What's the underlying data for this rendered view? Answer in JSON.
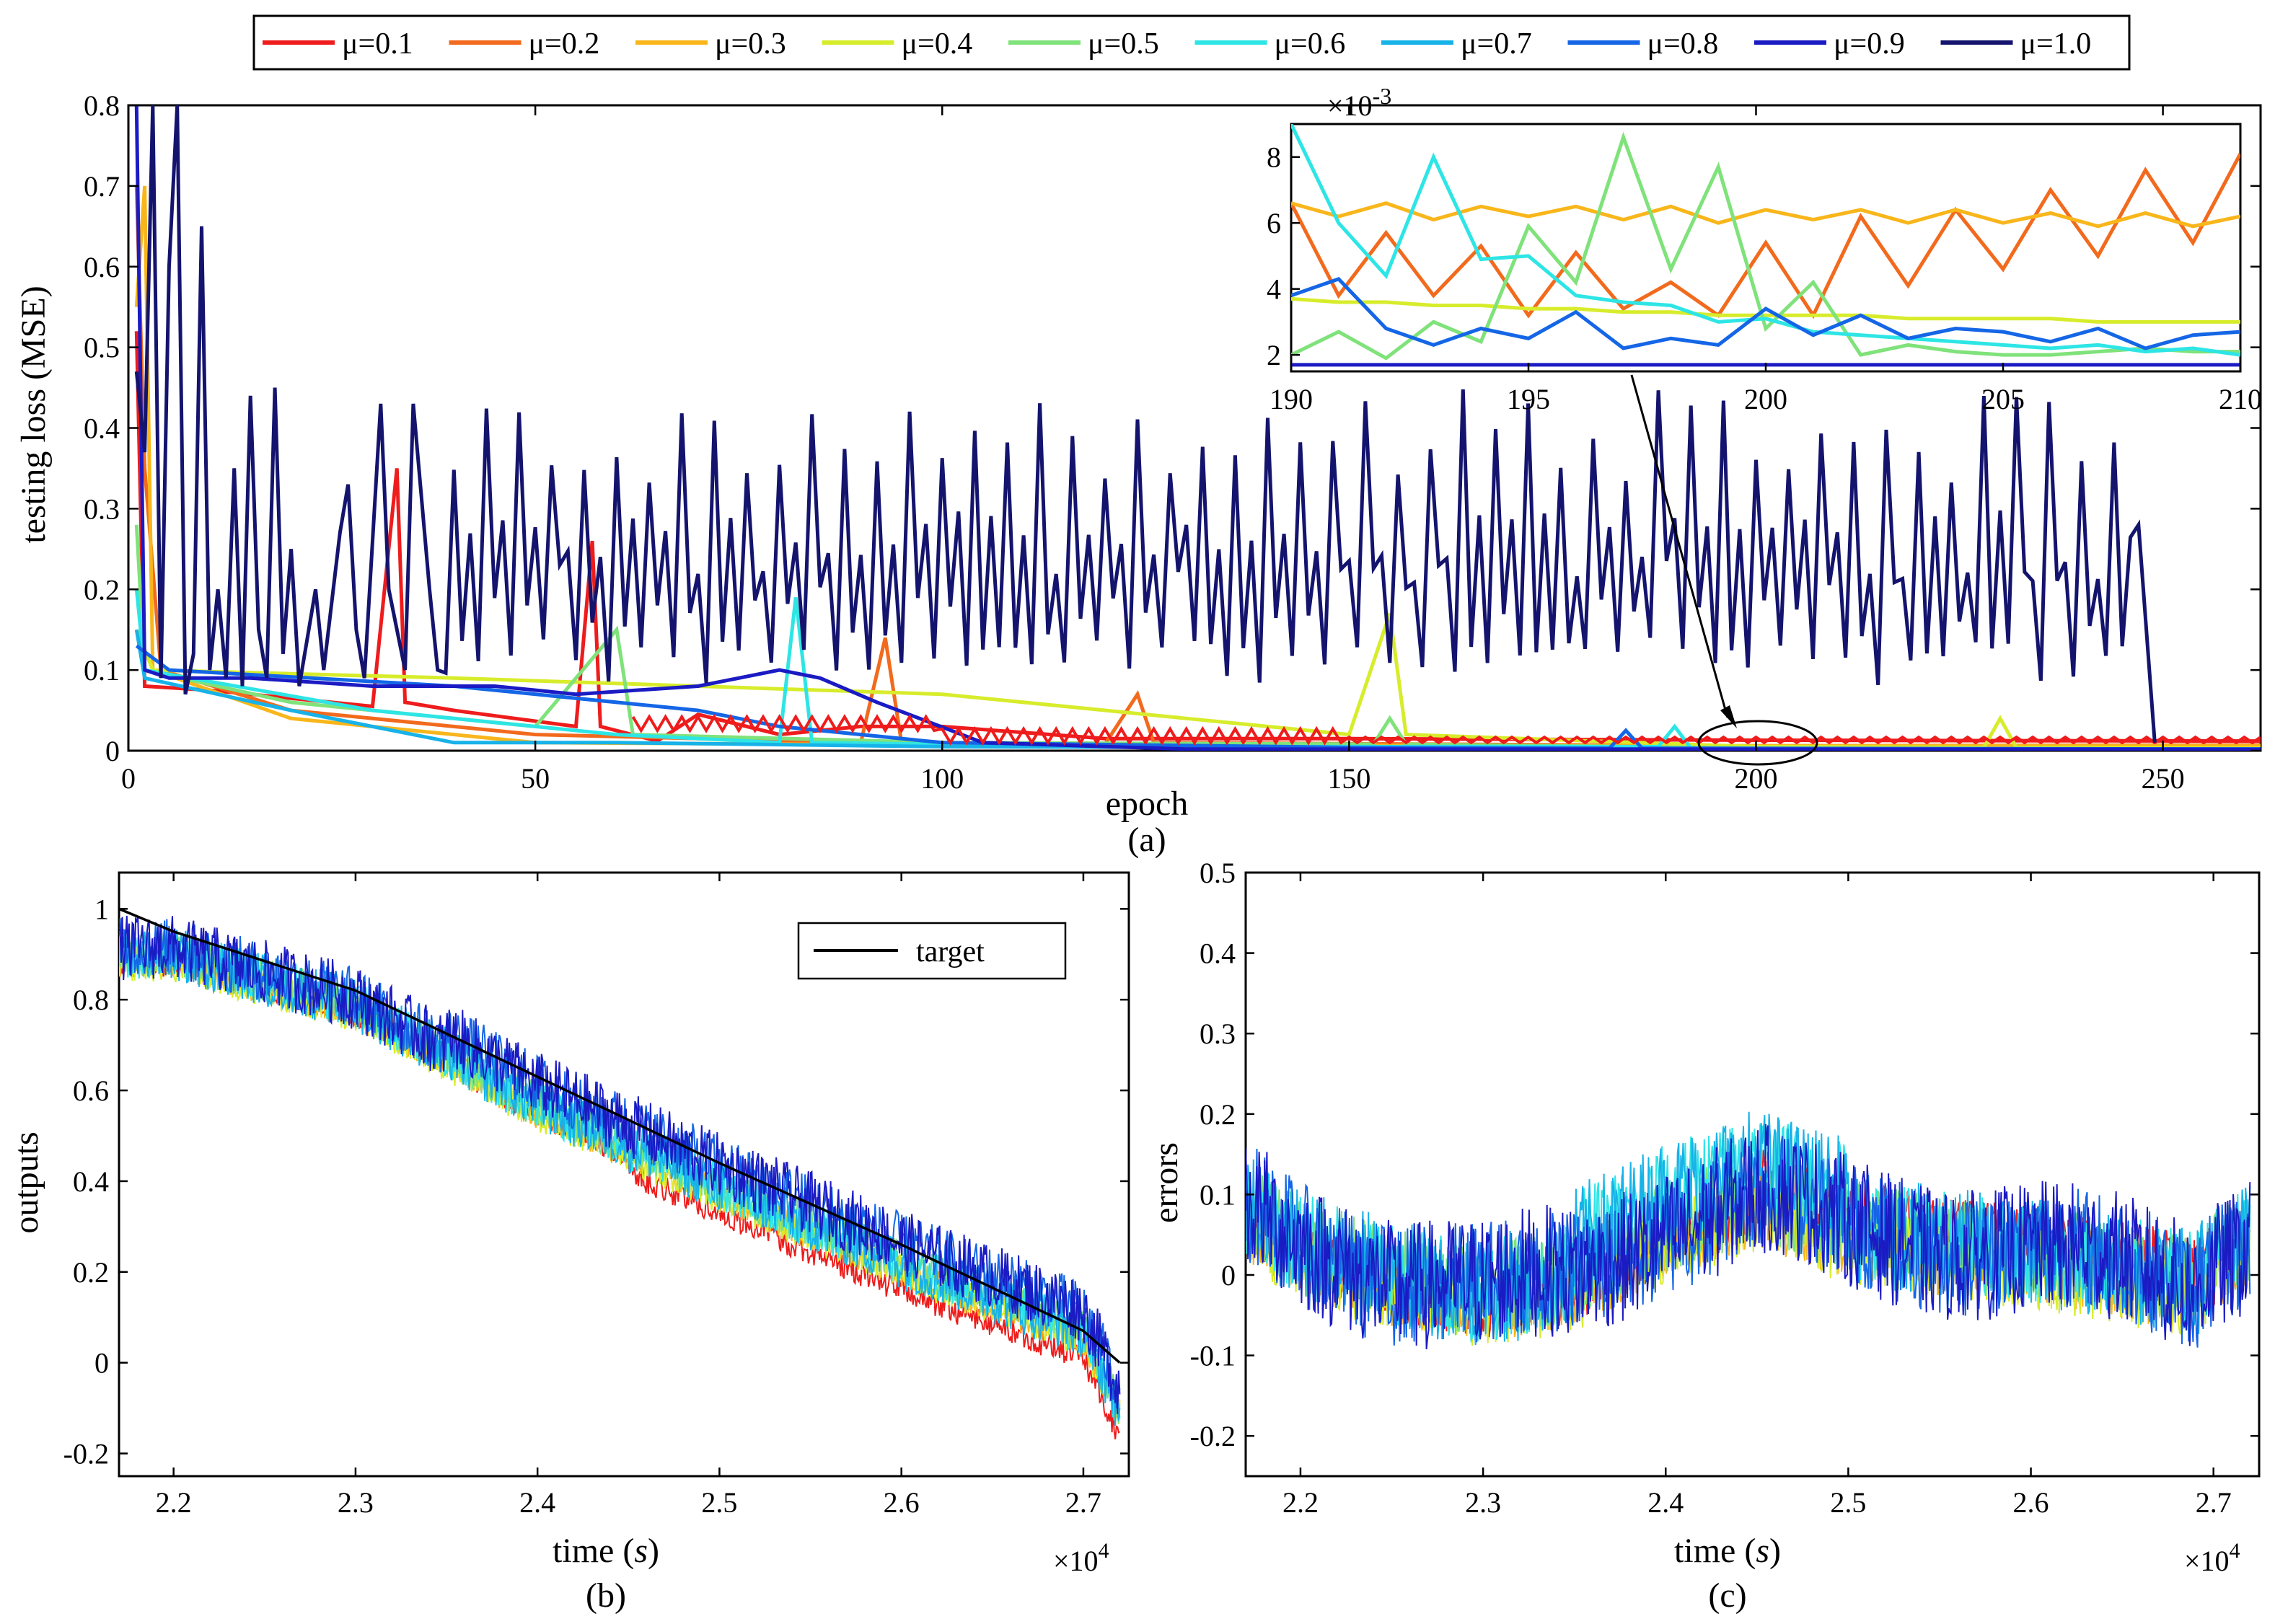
{
  "legend": {
    "items": [
      {
        "label": "μ=0.1",
        "color": "#ee1c1c"
      },
      {
        "label": "μ=0.2",
        "color": "#f26a1d"
      },
      {
        "label": "μ=0.3",
        "color": "#f8b61b"
      },
      {
        "label": "μ=0.4",
        "color": "#d7ec2b"
      },
      {
        "label": "μ=0.5",
        "color": "#7fe27a"
      },
      {
        "label": "μ=0.6",
        "color": "#2ee5e5"
      },
      {
        "label": "μ=0.7",
        "color": "#17b2e8"
      },
      {
        "label": "μ=0.8",
        "color": "#1466e6"
      },
      {
        "label": "μ=0.9",
        "color": "#1b1bc4"
      },
      {
        "label": "μ=1.0",
        "color": "#14146e"
      }
    ]
  },
  "chart_data": [
    {
      "id": "a",
      "type": "line",
      "panel_label": "(a)",
      "xlabel": "epoch",
      "ylabel": "testing loss (MSE)",
      "xlim": [
        0,
        262
      ],
      "ylim": [
        0,
        0.8
      ],
      "xticks": [
        0,
        50,
        100,
        150,
        200,
        250
      ],
      "yticks": [
        0,
        0.1,
        0.2,
        0.3,
        0.4,
        0.5,
        0.6,
        0.7,
        0.8
      ],
      "ytick_labels": [
        "0",
        "0.1",
        "0.2",
        "0.3",
        "0.4",
        "0.5",
        "0.6",
        "0.7",
        "0.8"
      ],
      "series": [
        {
          "name": "μ=0.1",
          "points": [
            [
              1,
              0.52
            ],
            [
              2,
              0.08
            ],
            [
              10,
              0.075
            ],
            [
              30,
              0.055
            ],
            [
              33,
              0.35
            ],
            [
              34,
              0.06
            ],
            [
              40,
              0.05
            ],
            [
              55,
              0.03
            ],
            [
              57,
              0.26
            ],
            [
              58,
              0.03
            ],
            [
              65,
              0.012
            ],
            [
              70,
              0.045
            ],
            [
              80,
              0.02
            ],
            [
              90,
              0.03
            ],
            [
              100,
              0.03
            ],
            [
              120,
              0.015
            ],
            [
              150,
              0.015
            ],
            [
              200,
              0.013
            ],
            [
              262,
              0.012
            ]
          ]
        },
        {
          "name": "μ=0.2",
          "points": [
            [
              1,
              0.7
            ],
            [
              2,
              0.35
            ],
            [
              4,
              0.1
            ],
            [
              20,
              0.05
            ],
            [
              50,
              0.02
            ],
            [
              90,
              0.01
            ],
            [
              93,
              0.14
            ],
            [
              95,
              0.01
            ],
            [
              120,
              0.008
            ],
            [
              124,
              0.07
            ],
            [
              126,
              0.01
            ],
            [
              200,
              0.006
            ],
            [
              262,
              0.007
            ]
          ]
        },
        {
          "name": "μ=0.3",
          "points": [
            [
              1,
              0.55
            ],
            [
              2,
              0.7
            ],
            [
              3,
              0.1
            ],
            [
              20,
              0.04
            ],
            [
              50,
              0.01
            ],
            [
              100,
              0.007
            ],
            [
              200,
              0.006
            ],
            [
              262,
              0.006
            ]
          ]
        },
        {
          "name": "μ=0.4",
          "points": [
            [
              1,
              0.15
            ],
            [
              3,
              0.1
            ],
            [
              40,
              0.09
            ],
            [
              100,
              0.07
            ],
            [
              150,
              0.02
            ],
            [
              155,
              0.17
            ],
            [
              157,
              0.02
            ],
            [
              200,
              0.005
            ],
            [
              228,
              0.004
            ],
            [
              230,
              0.04
            ],
            [
              232,
              0.004
            ],
            [
              262,
              0.003
            ]
          ]
        },
        {
          "name": "μ=0.5",
          "points": [
            [
              1,
              0.28
            ],
            [
              2,
              0.1
            ],
            [
              20,
              0.06
            ],
            [
              50,
              0.03
            ],
            [
              60,
              0.15
            ],
            [
              62,
              0.02
            ],
            [
              100,
              0.01
            ],
            [
              153,
              0.008
            ],
            [
              155,
              0.04
            ],
            [
              157,
              0.008
            ],
            [
              200,
              0.003
            ],
            [
              262,
              0.002
            ]
          ]
        },
        {
          "name": "μ=0.6",
          "points": [
            [
              1,
              0.2
            ],
            [
              2,
              0.1
            ],
            [
              30,
              0.05
            ],
            [
              60,
              0.02
            ],
            [
              80,
              0.01
            ],
            [
              82,
              0.19
            ],
            [
              84,
              0.01
            ],
            [
              120,
              0.005
            ],
            [
              188,
              0.005
            ],
            [
              190,
              0.03
            ],
            [
              192,
              0.003
            ],
            [
              262,
              0.002
            ]
          ]
        },
        {
          "name": "μ=0.7",
          "points": [
            [
              1,
              0.15
            ],
            [
              2,
              0.09
            ],
            [
              20,
              0.05
            ],
            [
              40,
              0.01
            ],
            [
              60,
              0.01
            ],
            [
              100,
              0.005
            ],
            [
              200,
              0.002
            ],
            [
              262,
              0.002
            ]
          ]
        },
        {
          "name": "μ=0.8",
          "points": [
            [
              1,
              0.13
            ],
            [
              5,
              0.1
            ],
            [
              40,
              0.08
            ],
            [
              60,
              0.06
            ],
            [
              70,
              0.05
            ],
            [
              80,
              0.03
            ],
            [
              100,
              0.01
            ],
            [
              150,
              0.004
            ],
            [
              182,
              0.003
            ],
            [
              184,
              0.025
            ],
            [
              186,
              0.003
            ],
            [
              262,
              0.002
            ]
          ]
        },
        {
          "name": "μ=0.9",
          "points": [
            [
              1,
              0.8
            ],
            [
              2,
              0.1
            ],
            [
              5,
              0.09
            ],
            [
              15,
              0.09
            ],
            [
              30,
              0.08
            ],
            [
              45,
              0.08
            ],
            [
              55,
              0.07
            ],
            [
              70,
              0.08
            ],
            [
              80,
              0.1
            ],
            [
              85,
              0.09
            ],
            [
              92,
              0.06
            ],
            [
              105,
              0.01
            ],
            [
              130,
              0.002
            ],
            [
              262,
              0.0017
            ]
          ]
        },
        {
          "name": "μ=1.0",
          "points": [
            [
              1,
              0.47
            ],
            [
              2,
              0.37
            ],
            [
              3,
              0.8
            ],
            [
              4,
              0.09
            ],
            [
              5,
              0.6
            ],
            [
              6,
              0.8
            ],
            [
              7,
              0.07
            ],
            [
              8,
              0.12
            ],
            [
              9,
              0.65
            ],
            [
              10,
              0.1
            ],
            [
              11,
              0.2
            ],
            [
              12,
              0.09
            ],
            [
              13,
              0.35
            ],
            [
              14,
              0.08
            ],
            [
              15,
              0.44
            ],
            [
              16,
              0.15
            ],
            [
              17,
              0.09
            ],
            [
              18,
              0.45
            ],
            [
              19,
              0.12
            ],
            [
              20,
              0.25
            ],
            [
              21,
              0.08
            ],
            [
              23,
              0.2
            ],
            [
              24,
              0.1
            ],
            [
              26,
              0.27
            ],
            [
              27,
              0.33
            ],
            [
              28,
              0.15
            ],
            [
              29,
              0.09
            ],
            [
              31,
              0.43
            ],
            [
              32,
              0.2
            ],
            [
              34,
              0.1
            ],
            [
              35,
              0.43
            ],
            [
              37,
              0.2
            ],
            [
              38,
              0.1
            ]
          ]
        }
      ],
      "inset": {
        "xlim": [
          190,
          210
        ],
        "ylim": [
          0.0015,
          0.009
        ],
        "xticks": [
          190,
          195,
          200,
          205,
          210
        ],
        "yticks": [
          2,
          4,
          6,
          8
        ],
        "exponent_label": "×10-3",
        "series": [
          {
            "name": "μ=0.2",
            "values": [
              6.6,
              3.8,
              5.7,
              3.8,
              5.3,
              3.2,
              5.1,
              3.4,
              4.2,
              3.2,
              5.4,
              3.2,
              6.2,
              4.1,
              6.4,
              4.6,
              7.0,
              5.0,
              7.6,
              5.4,
              8.1
            ]
          },
          {
            "name": "μ=0.3",
            "values": [
              6.6,
              6.2,
              6.6,
              6.1,
              6.5,
              6.2,
              6.5,
              6.1,
              6.5,
              6.0,
              6.4,
              6.1,
              6.4,
              6.0,
              6.4,
              6.0,
              6.3,
              5.9,
              6.3,
              5.9,
              6.2
            ]
          },
          {
            "name": "μ=0.4",
            "values": [
              3.7,
              3.6,
              3.6,
              3.5,
              3.5,
              3.4,
              3.4,
              3.3,
              3.3,
              3.2,
              3.2,
              3.2,
              3.2,
              3.1,
              3.1,
              3.1,
              3.1,
              3.0,
              3.0,
              3.0,
              3.0
            ]
          },
          {
            "name": "μ=0.5",
            "values": [
              2.0,
              2.7,
              1.9,
              3.0,
              2.4,
              5.9,
              4.2,
              8.6,
              4.6,
              7.7,
              2.8,
              4.2,
              2.0,
              2.3,
              2.1,
              2.0,
              2.0,
              2.1,
              2.2,
              2.1,
              2.1
            ]
          },
          {
            "name": "μ=0.6",
            "values": [
              9.0,
              6.0,
              4.4,
              8.0,
              4.9,
              5.0,
              3.8,
              3.6,
              3.5,
              3.0,
              3.1,
              2.7,
              2.6,
              2.5,
              2.4,
              2.3,
              2.2,
              2.3,
              2.1,
              2.2,
              2.0
            ]
          },
          {
            "name": "μ=0.8",
            "values": [
              3.8,
              4.3,
              2.8,
              2.3,
              2.8,
              2.5,
              3.3,
              2.2,
              2.5,
              2.3,
              3.4,
              2.6,
              3.2,
              2.5,
              2.8,
              2.7,
              2.4,
              2.8,
              2.2,
              2.6,
              2.7
            ]
          },
          {
            "name": "μ=0.9",
            "values": [
              1.7,
              1.7,
              1.7,
              1.7,
              1.7,
              1.7,
              1.7,
              1.7,
              1.7,
              1.7,
              1.7,
              1.7,
              1.7,
              1.7,
              1.7,
              1.7,
              1.7,
              1.7,
              1.7,
              1.7,
              1.7
            ]
          }
        ]
      }
    },
    {
      "id": "b",
      "type": "line",
      "panel_label": "(b)",
      "xlabel": "time (s)",
      "ylabel": "outputs",
      "xlim": [
        2.17,
        2.725
      ],
      "ylim": [
        -0.25,
        1.08
      ],
      "xticks": [
        2.2,
        2.3,
        2.4,
        2.5,
        2.6,
        2.7
      ],
      "yticks": [
        -0.2,
        0,
        0.2,
        0.4,
        0.6,
        0.8,
        1
      ],
      "ytick_labels": [
        "-0.2",
        "0",
        "0.2",
        "0.4",
        "0.6",
        "0.8",
        "1"
      ],
      "exponent_label": "×10^4",
      "legend": "target",
      "target": [
        [
          2.17,
          1.0
        ],
        [
          2.2,
          0.95
        ],
        [
          2.3,
          0.82
        ],
        [
          2.4,
          0.63
        ],
        [
          2.5,
          0.44
        ],
        [
          2.6,
          0.26
        ],
        [
          2.7,
          0.07
        ],
        [
          2.72,
          0.0
        ]
      ],
      "baseline": [
        [
          2.17,
          0.9
        ],
        [
          2.2,
          0.9
        ],
        [
          2.3,
          0.79
        ],
        [
          2.4,
          0.57
        ],
        [
          2.5,
          0.39
        ],
        [
          2.6,
          0.22
        ],
        [
          2.7,
          0.07
        ],
        [
          2.72,
          -0.1
        ]
      ]
    },
    {
      "id": "c",
      "type": "line",
      "panel_label": "(c)",
      "xlabel": "time (s)",
      "ylabel": "errors",
      "xlim": [
        2.17,
        2.725
      ],
      "ylim": [
        -0.25,
        0.5
      ],
      "xticks": [
        2.2,
        2.3,
        2.4,
        2.5,
        2.6,
        2.7
      ],
      "yticks": [
        -0.2,
        -0.1,
        0,
        0.1,
        0.2,
        0.3,
        0.4,
        0.5
      ],
      "ytick_labels": [
        "-0.2",
        "-0.1",
        "0",
        "0.1",
        "0.2",
        "0.3",
        "0.4",
        "0.5"
      ],
      "exponent_label": "×10^4",
      "baseline": [
        [
          2.17,
          0.08
        ],
        [
          2.2,
          0.04
        ],
        [
          2.25,
          0.0
        ],
        [
          2.3,
          -0.02
        ],
        [
          2.35,
          0.0
        ],
        [
          2.4,
          0.06
        ],
        [
          2.45,
          0.1
        ],
        [
          2.5,
          0.06
        ],
        [
          2.55,
          0.04
        ],
        [
          2.6,
          0.03
        ],
        [
          2.65,
          0.01
        ],
        [
          2.69,
          -0.01
        ],
        [
          2.7,
          0.02
        ],
        [
          2.72,
          0.05
        ]
      ]
    }
  ]
}
